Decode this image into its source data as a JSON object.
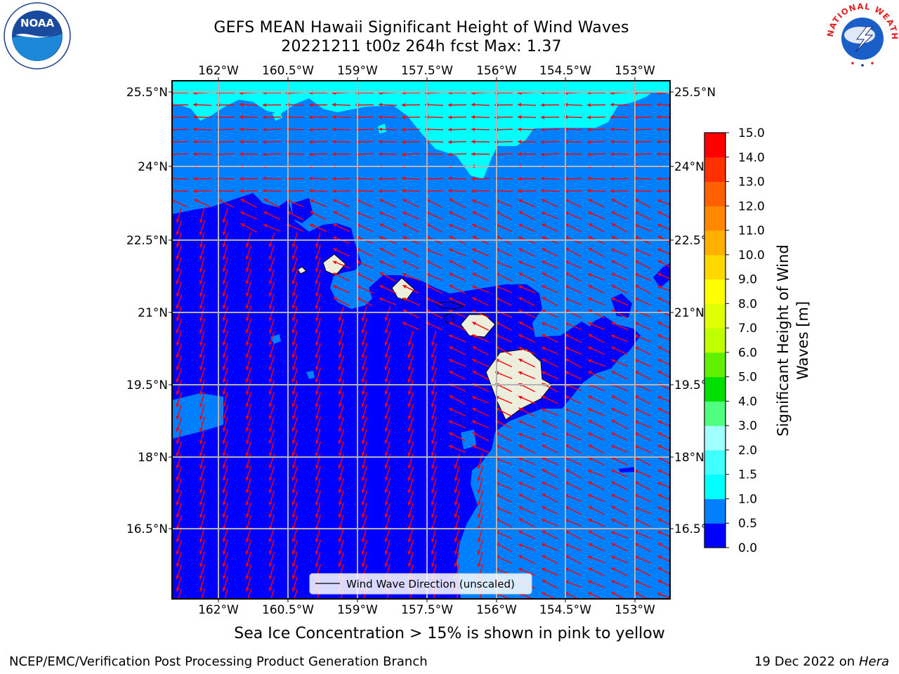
{
  "title": {
    "line1": "GEFS MEAN Hawaii Significant Height of Wind Waves",
    "line2": "20221211 t00z 264h fcst   Max: 1.37"
  },
  "map": {
    "lon_ticks": [
      "162°W",
      "160.5°W",
      "159°W",
      "157.5°W",
      "156°W",
      "154.5°W",
      "153°W"
    ],
    "lat_ticks": [
      "25.5°N",
      "24°N",
      "22.5°N",
      "21°N",
      "19.5°N",
      "18°N",
      "16.5°N"
    ],
    "legend_label": "Wind Wave Direction (unscaled)"
  },
  "colorbar": {
    "label_line1": "Significant Height of Wind",
    "label_line2": "Waves [m]",
    "ticks": [
      "0.0",
      "0.5",
      "1.0",
      "1.5",
      "2.0",
      "3.0",
      "4.0",
      "5.0",
      "6.0",
      "7.0",
      "8.0",
      "9.0",
      "10.0",
      "11.0",
      "12.0",
      "13.0",
      "14.0",
      "15.0"
    ],
    "colors": [
      "#0000ff",
      "#0080ff",
      "#00ffff",
      "#40ffff",
      "#a0ffff",
      "#50ff80",
      "#00e000",
      "#60f000",
      "#c0ff00",
      "#e0ff00",
      "#ffff00",
      "#ffd800",
      "#ffb000",
      "#ff8800",
      "#ff6000",
      "#ff3000",
      "#ff0000"
    ]
  },
  "colors": {
    "bin_0": "#0000ff",
    "bin_05": "#0080ff",
    "bin_1": "#00ffff",
    "land": "#eeeedd",
    "arrow": "#ff0000"
  },
  "bottom_note": "Sea Ice Concentration > 15% is shown in pink to yellow",
  "footer": {
    "left": "NCEP/EMC/Verification Post Processing Product Generation Branch",
    "date": "19 Dec 2022 on",
    "host": "Hera"
  },
  "logos": {
    "noaa_text": "NOAA",
    "nws_text": "NATIONAL WEATHER SERVICE"
  }
}
